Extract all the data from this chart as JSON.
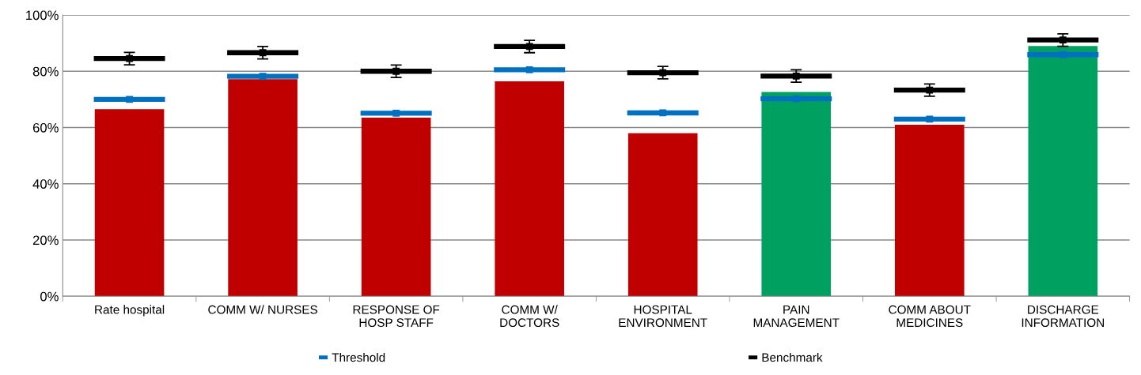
{
  "chart_data": {
    "type": "bar",
    "categories": [
      "Rate hospital",
      "COMM W/ NURSES",
      "RESPONSE OF\nHOSP STAFF",
      "COMM W/\nDOCTORS",
      "HOSPITAL\nENVIRONMENT",
      "PAIN\nMANAGEMENT",
      "COMM ABOUT\nMEDICINES",
      "DISCHARGE\nINFORMATION"
    ],
    "series": [
      {
        "type": "bar",
        "colors": [
          "#c00000",
          "#c00000",
          "#c00000",
          "#c00000",
          "#c00000",
          "#00a060",
          "#c00000",
          "#00a060"
        ],
        "values": [
          66.5,
          77.2,
          63.5,
          76.4,
          58.0,
          72.6,
          61.0,
          89.0
        ]
      },
      {
        "type": "scatter",
        "name": "Threshold",
        "color": "#0070c0",
        "values": [
          70.0,
          78.2,
          65.1,
          80.5,
          65.2,
          70.2,
          63.0,
          85.9
        ]
      },
      {
        "type": "scatter",
        "name": "Benchmark",
        "color": "#000000",
        "values": [
          84.5,
          86.6,
          80.0,
          88.8,
          79.5,
          78.3,
          73.3,
          91.1
        ],
        "errors": [
          2.2,
          2.2,
          2.2,
          2.2,
          2.2,
          2.2,
          2.2,
          2.2
        ]
      }
    ],
    "ylim": [
      0,
      100
    ],
    "yticks": [
      {
        "value": 0,
        "label": "0%"
      },
      {
        "value": 20,
        "label": "20%"
      },
      {
        "value": 40,
        "label": "40%"
      },
      {
        "value": 60,
        "label": "60%"
      },
      {
        "value": 80,
        "label": "80%"
      },
      {
        "value": 100,
        "label": "100%"
      }
    ],
    "grid": "y",
    "legend": "bottom",
    "marker": "square"
  }
}
